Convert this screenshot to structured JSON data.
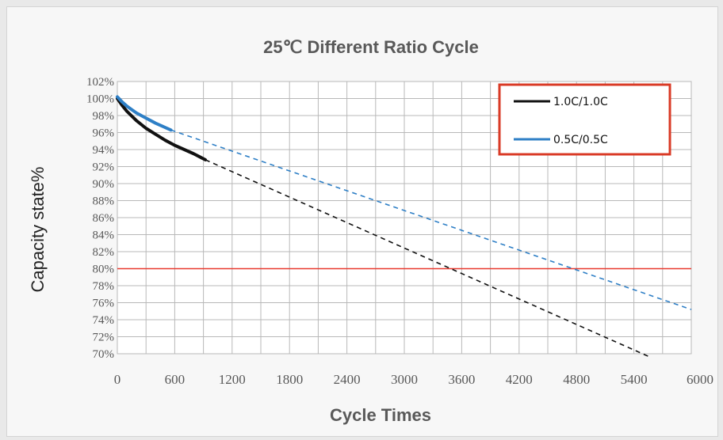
{
  "chart_data": {
    "type": "line",
    "title": "25℃ Different Ratio Cycle",
    "xlabel": "Cycle Times",
    "ylabel": "Capacity state%",
    "xlim": [
      0,
      6000
    ],
    "ylim": [
      70,
      102
    ],
    "xticks": [
      0,
      600,
      1200,
      1800,
      2400,
      3000,
      3600,
      4200,
      4800,
      5400,
      6000
    ],
    "yticks": [
      70,
      72,
      74,
      76,
      78,
      80,
      82,
      84,
      86,
      88,
      90,
      92,
      94,
      96,
      98,
      100,
      102
    ],
    "ytick_suffix": "%",
    "grid": true,
    "legend_position": "top-right",
    "reference_line": {
      "y": 80,
      "color": "#e8392e"
    },
    "series": [
      {
        "name": "1.0C/1.0C",
        "color": "#111111",
        "measured": {
          "x": [
            0,
            50,
            100,
            200,
            300,
            400,
            500,
            600,
            700,
            800,
            920
          ],
          "y": [
            100.0,
            99.2,
            98.5,
            97.4,
            96.5,
            95.8,
            95.1,
            94.5,
            94.0,
            93.5,
            92.8
          ]
        },
        "projected": {
          "x": [
            920,
            5550
          ],
          "y": [
            92.8,
            69.7
          ]
        }
      },
      {
        "name": "0.5C/0.5C",
        "color": "#2e7fc6",
        "measured": {
          "x": [
            0,
            50,
            100,
            150,
            200,
            300,
            400,
            500,
            560
          ],
          "y": [
            100.2,
            99.6,
            99.1,
            98.7,
            98.3,
            97.7,
            97.1,
            96.6,
            96.3
          ]
        },
        "projected": {
          "x": [
            560,
            6000
          ],
          "y": [
            96.3,
            75.2
          ]
        }
      }
    ]
  }
}
